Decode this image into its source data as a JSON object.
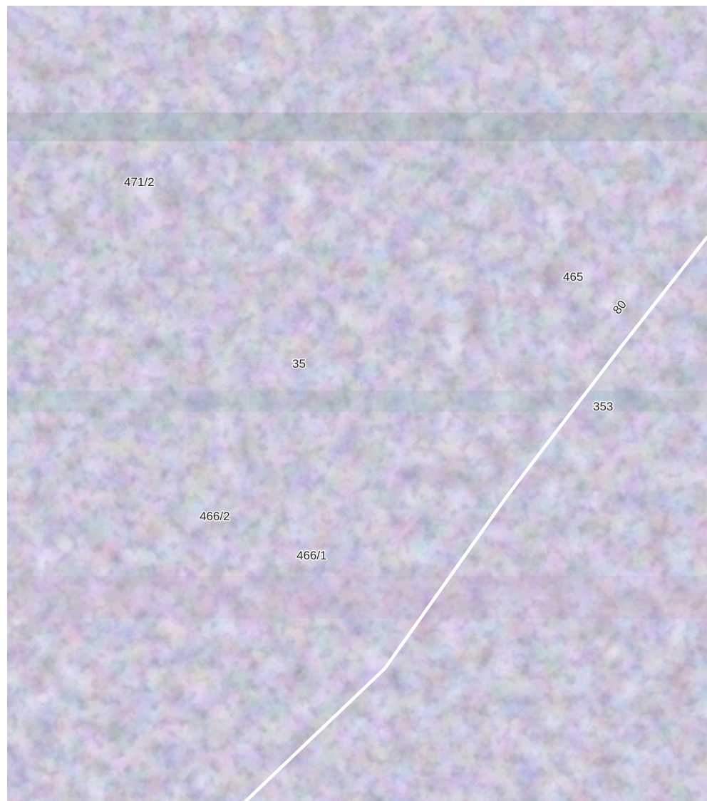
{
  "map": {
    "imagery": "aerial-orthophoto-forest",
    "colors": {
      "base": "#8f86a6",
      "green": "#5f8f74",
      "pink": "#c7a3c7",
      "teal": "#89b5ae",
      "dark": "#5a4f72",
      "road": "#ffffff",
      "parcel_boundary": "#d8c9e0"
    },
    "parcel_labels": {
      "p471_2": "471/2",
      "p465": "465",
      "p35": "35",
      "p353": "353",
      "p466_2": "466/2",
      "p466_1": "466/1"
    },
    "road_label": "80"
  }
}
